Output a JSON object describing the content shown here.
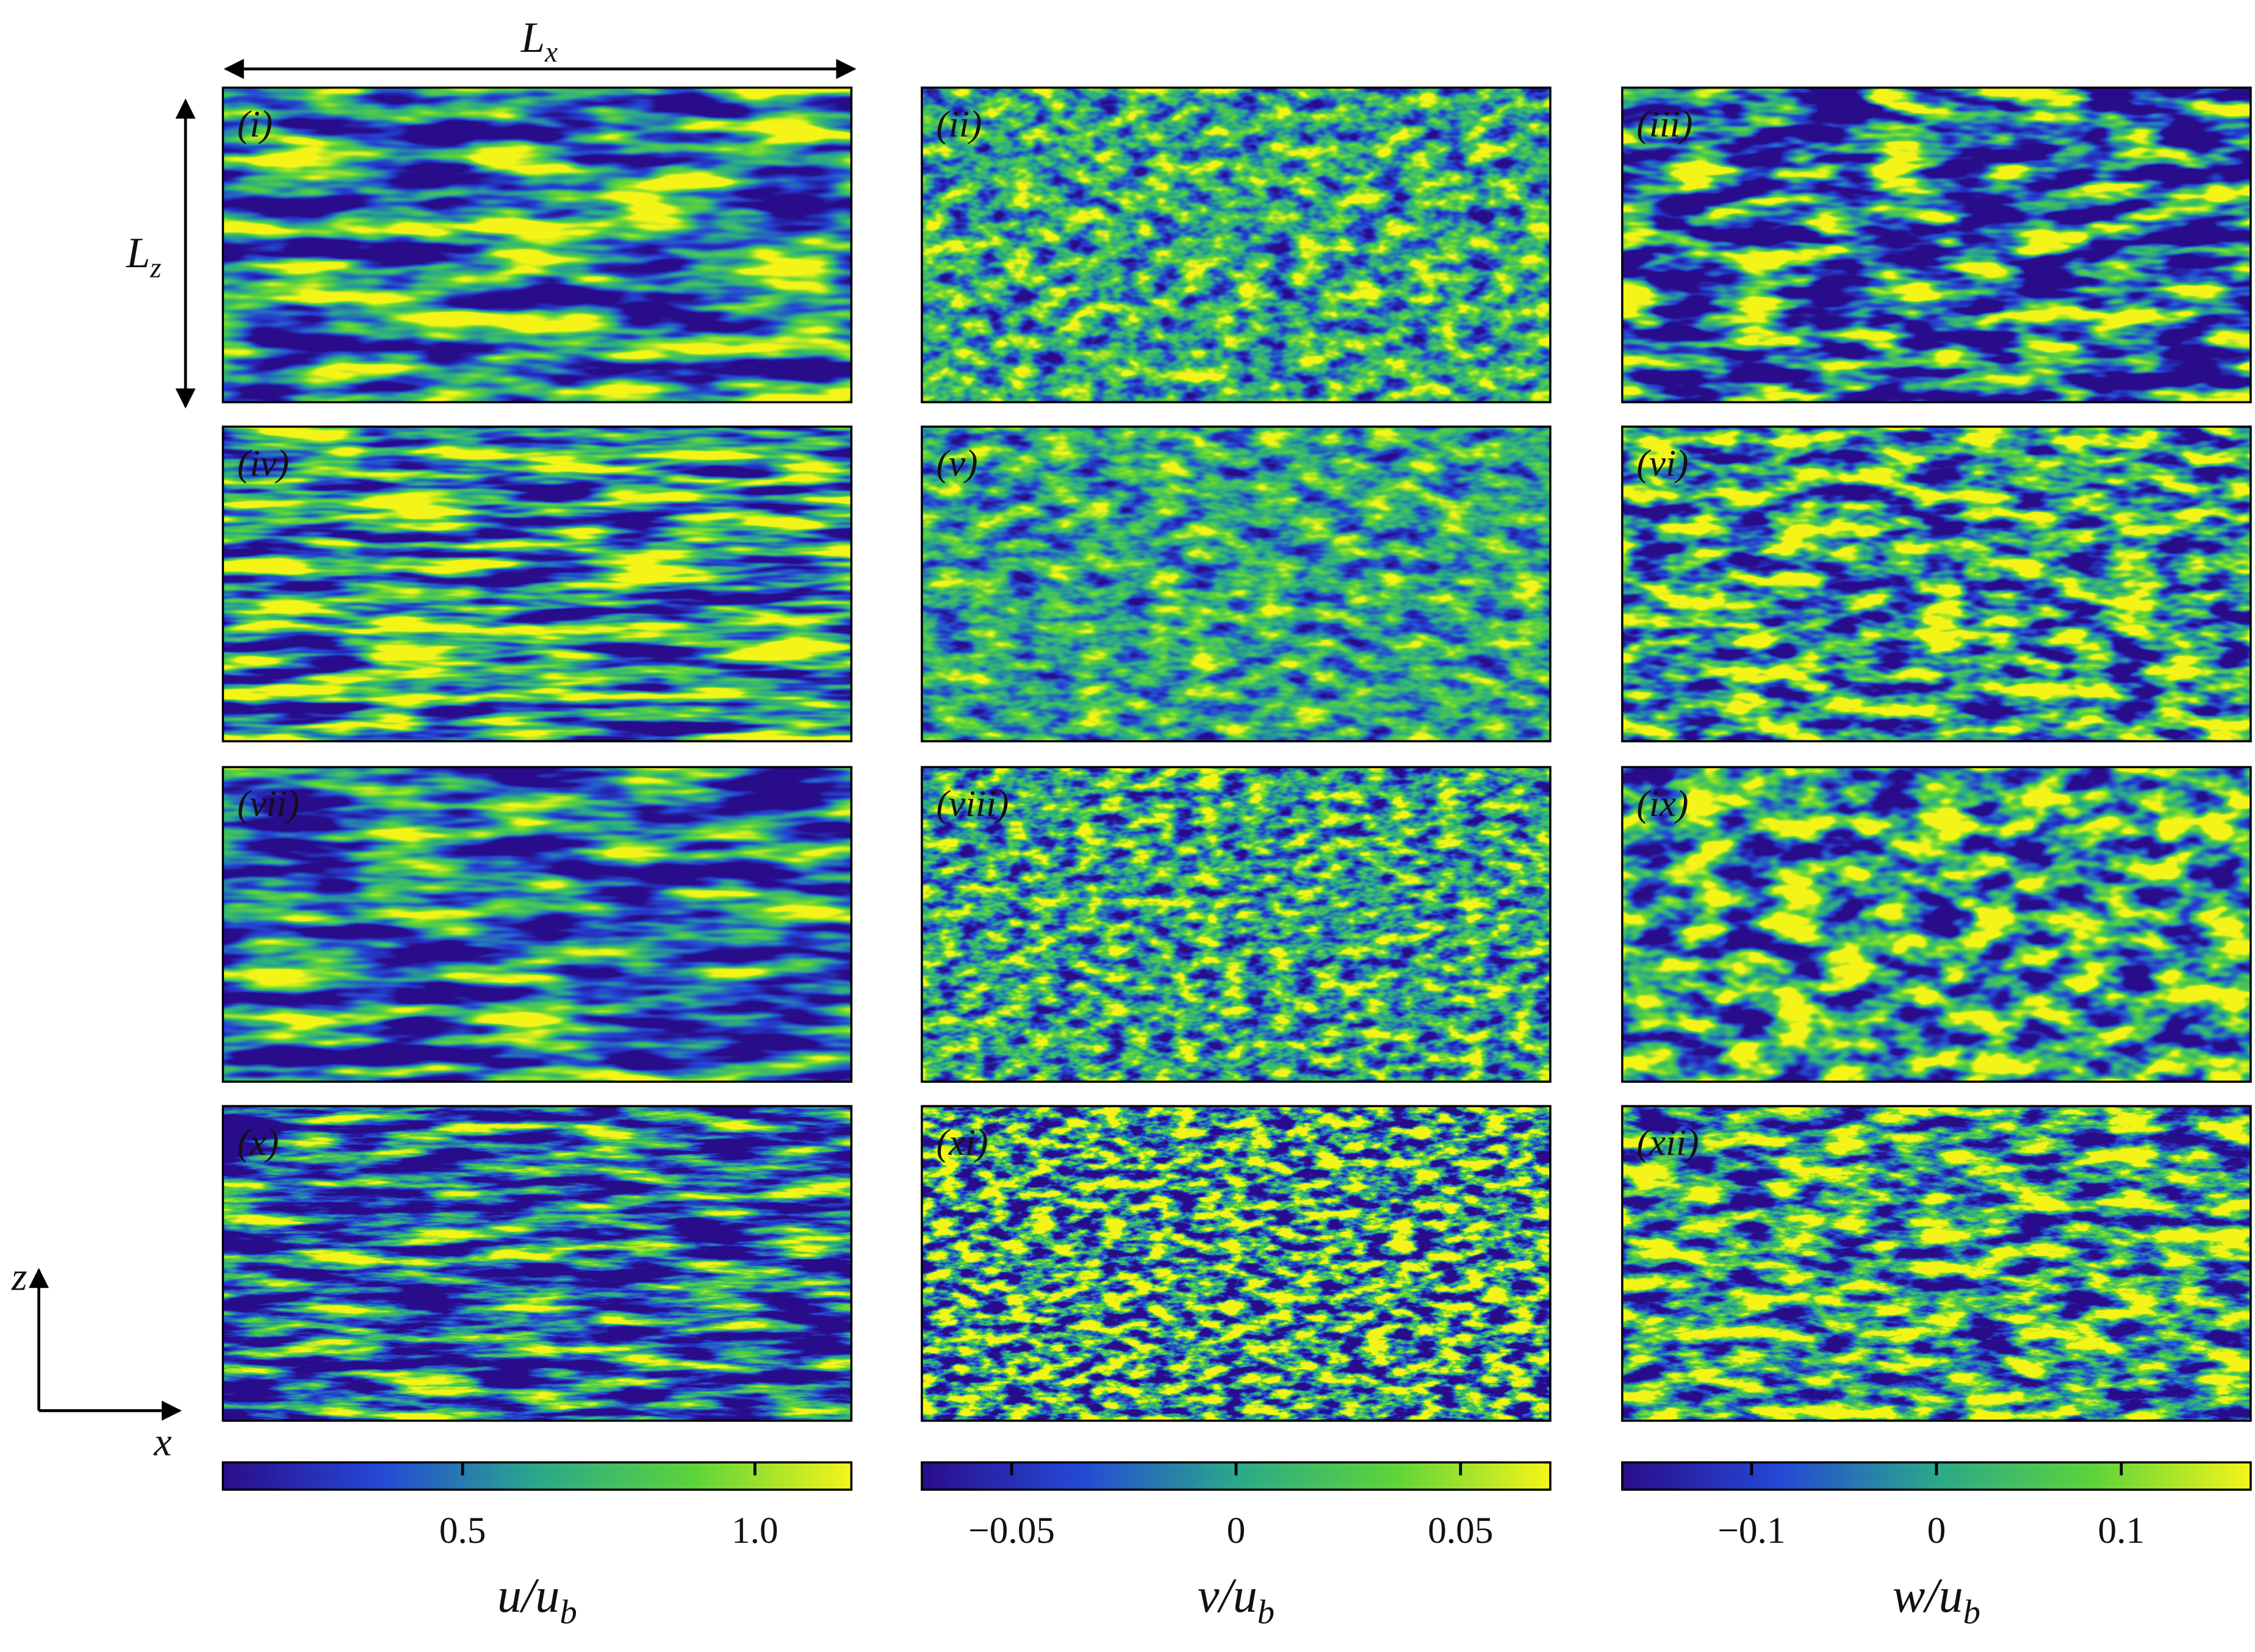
{
  "figure": {
    "dimension_labels": {
      "streamwise": {
        "base": "L",
        "sub": "x"
      },
      "spanwise": {
        "base": "L",
        "sub": "z"
      }
    },
    "axes": {
      "vertical": "z",
      "horizontal": "x"
    },
    "panels": [
      "(i)",
      "(ii)",
      "(iii)",
      "(iv)",
      "(v)",
      "(vi)",
      "(vii)",
      "(viii)",
      "(ix)",
      "(x)",
      "(xi)",
      "(xii)"
    ],
    "colorbars": [
      {
        "label": {
          "base": "u/u",
          "sub": "b"
        },
        "lim": [
          0.09,
          1.165
        ],
        "ticks": [
          0.5,
          {
            "value": 1,
            "label": "1.0"
          }
        ]
      },
      {
        "label": {
          "base": "v/u",
          "sub": "b"
        },
        "lim": [
          -0.07,
          0.07
        ],
        "ticks": [
          {
            "value": -0.05,
            "label": "−0.05"
          },
          0,
          0.05
        ]
      },
      {
        "label": {
          "base": "w/u",
          "sub": "b"
        },
        "lim": [
          -0.17,
          0.17
        ],
        "ticks": [
          {
            "value": -0.1,
            "label": "−0.1"
          },
          0,
          0.1
        ]
      }
    ]
  }
}
